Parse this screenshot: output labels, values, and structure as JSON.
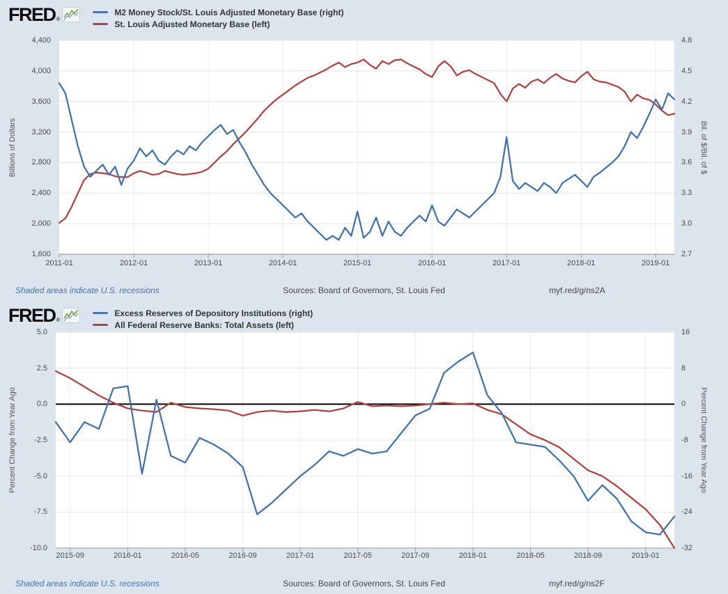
{
  "page": {
    "background": "#dce4ee",
    "plot_background": "#ffffff"
  },
  "charts": [
    {
      "logo": {
        "text": "FRED",
        "reg": "®"
      },
      "legend": [
        {
          "label": "M2 Money Stock/St. Louis Adjusted Monetary Base (right)",
          "color": "#4572a7"
        },
        {
          "label": "St. Louis Adjusted Monetary Base (left)",
          "color": "#aa4643"
        }
      ],
      "footer": {
        "note": "Shaded areas indicate U.S. recessions",
        "sources": "Sources: Board of Governors, St. Louis Fed",
        "link": "myf.red/g/ns2A"
      }
    },
    {
      "logo": {
        "text": "FRED",
        "reg": "®"
      },
      "legend": [
        {
          "label": "Excess Reserves of Depository Institutions (right)",
          "color": "#4572a7"
        },
        {
          "label": "All Federal Reserve Banks: Total Assets (left)",
          "color": "#aa4643"
        }
      ],
      "footer": {
        "note": "Shaded areas indicate U.S. recessions",
        "sources": "Sources: Board of Governors, St. Louis Fed",
        "link": "myf.red/g/ns2F"
      }
    }
  ],
  "chart_data": [
    {
      "type": "line",
      "x_start": "2011-01",
      "x_end": "2019-04",
      "x_frequency": "monthly",
      "grid": true,
      "zero_line": false,
      "xticks": {
        "labels": [
          "2011-01",
          "2012-01",
          "2013-01",
          "2014-01",
          "2015-01",
          "2016-01",
          "2017-01",
          "2018-01",
          "2019-01"
        ],
        "positions": [
          0,
          12,
          24,
          36,
          48,
          60,
          72,
          84,
          96
        ]
      },
      "left_axis": {
        "title": "Billions of Dollars",
        "min": 1600,
        "max": 4400,
        "tick_values": [
          4400,
          4000,
          3600,
          3200,
          2800,
          2400,
          2000,
          1600
        ],
        "tick_labels": [
          "4,400",
          "4,000",
          "3,600",
          "3,200",
          "2,800",
          "2,400",
          "2,000",
          "1,600"
        ]
      },
      "right_axis": {
        "title": "Bil. of $/Bil. of $",
        "min": 2.7,
        "max": 4.8,
        "tick_values": [
          4.8,
          4.5,
          4.2,
          3.9,
          3.6,
          3.3,
          3.0,
          2.7
        ],
        "tick_labels": [
          "4.8",
          "4.5",
          "4.2",
          "3.9",
          "3.6",
          "3.3",
          "3.0",
          "2.7"
        ]
      },
      "series": [
        {
          "name": "M2 Money Stock/St. Louis Adjusted Monetary Base (right)",
          "axis": "right",
          "color": "#4572a7",
          "values": [
            4.38,
            4.28,
            4.02,
            3.76,
            3.56,
            3.46,
            3.52,
            3.58,
            3.48,
            3.56,
            3.38,
            3.54,
            3.62,
            3.74,
            3.66,
            3.72,
            3.62,
            3.58,
            3.66,
            3.72,
            3.68,
            3.76,
            3.72,
            3.8,
            3.86,
            3.92,
            3.97,
            3.88,
            3.92,
            3.8,
            3.7,
            3.58,
            3.48,
            3.38,
            3.3,
            3.24,
            3.18,
            3.12,
            3.06,
            3.1,
            3.02,
            2.96,
            2.9,
            2.84,
            2.88,
            2.84,
            2.96,
            2.88,
            3.12,
            2.86,
            2.92,
            3.06,
            2.88,
            3.02,
            2.92,
            2.88,
            2.96,
            3.02,
            3.08,
            3.02,
            3.18,
            3.02,
            2.98,
            3.06,
            3.14,
            3.1,
            3.06,
            3.12,
            3.18,
            3.24,
            3.3,
            3.46,
            3.85,
            3.42,
            3.34,
            3.4,
            3.36,
            3.32,
            3.4,
            3.36,
            3.3,
            3.4,
            3.44,
            3.48,
            3.42,
            3.36,
            3.46,
            3.5,
            3.55,
            3.6,
            3.66,
            3.76,
            3.9,
            3.84,
            3.95,
            4.08,
            4.22,
            4.12,
            4.28,
            4.22
          ]
        },
        {
          "name": "St. Louis Adjusted Monetary Base (left)",
          "axis": "left",
          "color": "#aa4643",
          "values": [
            2010,
            2070,
            2220,
            2400,
            2570,
            2650,
            2670,
            2660,
            2650,
            2620,
            2610,
            2610,
            2660,
            2690,
            2670,
            2640,
            2650,
            2690,
            2670,
            2650,
            2640,
            2650,
            2660,
            2680,
            2720,
            2800,
            2880,
            2950,
            3040,
            3120,
            3200,
            3290,
            3380,
            3480,
            3560,
            3630,
            3690,
            3750,
            3810,
            3860,
            3910,
            3940,
            3980,
            4020,
            4070,
            4110,
            4050,
            4090,
            4110,
            4150,
            4080,
            4030,
            4130,
            4090,
            4140,
            4150,
            4100,
            4060,
            4020,
            3960,
            3920,
            4060,
            4130,
            4060,
            3940,
            3990,
            4010,
            3960,
            3920,
            3880,
            3840,
            3700,
            3600,
            3770,
            3830,
            3780,
            3860,
            3890,
            3840,
            3910,
            3960,
            3900,
            3870,
            3850,
            3930,
            3990,
            3890,
            3860,
            3850,
            3820,
            3790,
            3730,
            3600,
            3690,
            3640,
            3620,
            3560,
            3480,
            3420,
            3440
          ]
        }
      ]
    },
    {
      "type": "line",
      "x_start": "2015-08",
      "x_end": "2019-03",
      "x_frequency": "monthly",
      "grid": true,
      "zero_line": true,
      "xticks": {
        "labels": [
          "2015-09",
          "2016-01",
          "2016-05",
          "2016-09",
          "2017-01",
          "2017-05",
          "2017-09",
          "2018-01",
          "2018-05",
          "2018-09",
          "2019-01"
        ],
        "positions": [
          1,
          5,
          9,
          13,
          17,
          21,
          25,
          29,
          33,
          37,
          41
        ]
      },
      "left_axis": {
        "title": "Percent Change from Year Ago",
        "min": -10,
        "max": 5,
        "tick_values": [
          5,
          2.5,
          0,
          -2.5,
          -5,
          -7.5,
          -10
        ],
        "tick_labels": [
          "5.0",
          "2.5",
          "0.0",
          "-2.5",
          "-5.0",
          "-7.5",
          "-10.0"
        ]
      },
      "right_axis": {
        "title": "Percent Change from Year Ago",
        "min": -32,
        "max": 16,
        "tick_values": [
          16,
          8,
          0,
          -8,
          -16,
          -24,
          -32
        ],
        "tick_labels": [
          "16",
          "8",
          "0",
          "-8",
          "-16",
          "-24",
          "-32"
        ]
      },
      "series": [
        {
          "name": "Excess Reserves of Depository Institutions (right)",
          "axis": "right",
          "color": "#4572a7",
          "values": [
            -4,
            -8.5,
            -4,
            -5.5,
            3.5,
            4,
            -15.5,
            1,
            -11.5,
            -13,
            -7.5,
            -9,
            -11,
            -14,
            -24.5,
            -22,
            -19,
            -16,
            -13.5,
            -10.5,
            -11.5,
            -10,
            -11,
            -10.5,
            -6.5,
            -2.5,
            -1,
            7,
            9.5,
            11.5,
            2,
            -2,
            -8.5,
            -9,
            -9.5,
            -12.5,
            -16,
            -21.5,
            -18,
            -21,
            -26,
            -28.5,
            -29,
            -25
          ]
        },
        {
          "name": "All Federal Reserve Banks: Total Assets (left)",
          "axis": "left",
          "color": "#aa4643",
          "values": [
            2.3,
            1.8,
            1.2,
            0.6,
            0.1,
            -0.3,
            -0.45,
            -0.55,
            0.1,
            -0.2,
            -0.3,
            -0.35,
            -0.45,
            -0.8,
            -0.55,
            -0.45,
            -0.55,
            -0.5,
            -0.4,
            -0.5,
            -0.3,
            0.15,
            -0.15,
            -0.1,
            -0.15,
            -0.1,
            0,
            0.1,
            0,
            0.05,
            -0.4,
            -0.7,
            -1.4,
            -2.1,
            -2.5,
            -3,
            -3.8,
            -4.6,
            -5,
            -5.7,
            -6.5,
            -7.3,
            -8.4,
            -10
          ]
        }
      ]
    }
  ]
}
